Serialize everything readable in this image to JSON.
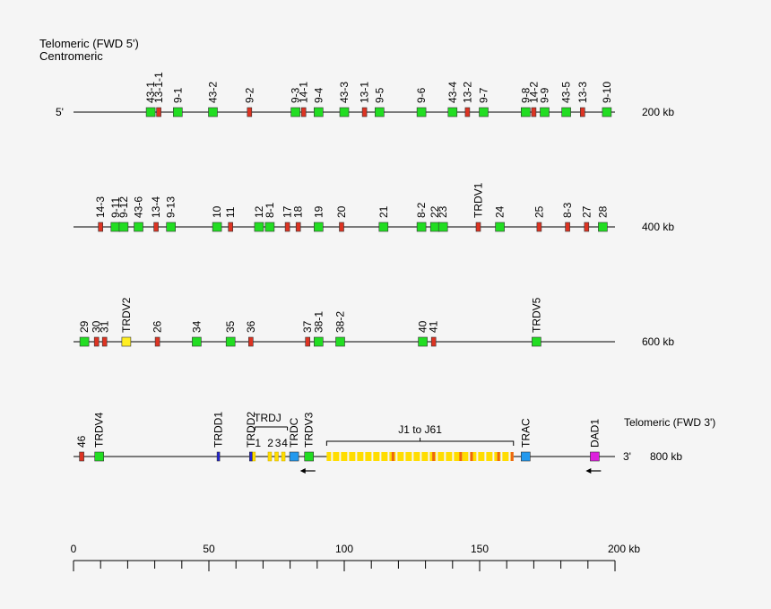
{
  "header": {
    "line1": "Telomeric (FWD 5')",
    "line2": "Centromeric"
  },
  "tracks": [
    {
      "end_label": "5'",
      "kb_label": "200 kb",
      "genes": [
        {
          "name": "43-1",
          "pos": 28.5,
          "type": "V"
        },
        {
          "name": "13-1-1",
          "pos": 31.5,
          "type": "pseudo"
        },
        {
          "name": "9-1",
          "pos": 38.5,
          "type": "V"
        },
        {
          "name": "43-2",
          "pos": 51.5,
          "type": "V"
        },
        {
          "name": "9-2",
          "pos": 65,
          "type": "pseudo"
        },
        {
          "name": "9-3",
          "pos": 82,
          "type": "V"
        },
        {
          "name": "14-1",
          "pos": 85,
          "type": "pseudo"
        },
        {
          "name": "9-4",
          "pos": 90.5,
          "type": "V"
        },
        {
          "name": "43-3",
          "pos": 100,
          "type": "V"
        },
        {
          "name": "13-1",
          "pos": 107.5,
          "type": "pseudo"
        },
        {
          "name": "9-5",
          "pos": 113,
          "type": "V"
        },
        {
          "name": "9-6",
          "pos": 128.5,
          "type": "V"
        },
        {
          "name": "43-4",
          "pos": 140,
          "type": "V"
        },
        {
          "name": "13-2",
          "pos": 145.5,
          "type": "pseudo"
        },
        {
          "name": "9-7",
          "pos": 151.5,
          "type": "V"
        },
        {
          "name": "9-8",
          "pos": 167,
          "type": "V"
        },
        {
          "name": "14-2",
          "pos": 170,
          "type": "pseudo"
        },
        {
          "name": "9-9",
          "pos": 174,
          "type": "V"
        },
        {
          "name": "43-5",
          "pos": 182,
          "type": "V"
        },
        {
          "name": "13-3",
          "pos": 188,
          "type": "pseudo"
        },
        {
          "name": "9-10",
          "pos": 197,
          "type": "V"
        }
      ]
    },
    {
      "end_label": "",
      "kb_label": "400 kb",
      "genes": [
        {
          "name": "14-3",
          "pos": 10,
          "type": "pseudo"
        },
        {
          "name": "9-11",
          "pos": 15.5,
          "type": "V"
        },
        {
          "name": "9-12",
          "pos": 18.5,
          "type": "V"
        },
        {
          "name": "43-6",
          "pos": 24,
          "type": "V"
        },
        {
          "name": "13-4",
          "pos": 30.5,
          "type": "pseudo"
        },
        {
          "name": "9-13",
          "pos": 36,
          "type": "V"
        },
        {
          "name": "10",
          "pos": 53,
          "type": "V"
        },
        {
          "name": "11",
          "pos": 58,
          "type": "pseudo"
        },
        {
          "name": "12",
          "pos": 68.5,
          "type": "V"
        },
        {
          "name": "8-1",
          "pos": 72.5,
          "type": "V"
        },
        {
          "name": "17",
          "pos": 79,
          "type": "pseudo"
        },
        {
          "name": "18",
          "pos": 83,
          "type": "pseudo"
        },
        {
          "name": "19",
          "pos": 90.5,
          "type": "V"
        },
        {
          "name": "20",
          "pos": 99,
          "type": "pseudo"
        },
        {
          "name": "21",
          "pos": 114.5,
          "type": "V"
        },
        {
          "name": "8-2",
          "pos": 128.5,
          "type": "V"
        },
        {
          "name": "22",
          "pos": 133.5,
          "type": "V"
        },
        {
          "name": "23",
          "pos": 136.5,
          "type": "V"
        },
        {
          "name": "TRDV1",
          "pos": 149.5,
          "type": "pseudo"
        },
        {
          "name": "24",
          "pos": 157.5,
          "type": "V"
        },
        {
          "name": "25",
          "pos": 172,
          "type": "pseudo"
        },
        {
          "name": "8-3",
          "pos": 182.5,
          "type": "pseudo"
        },
        {
          "name": "27",
          "pos": 189.5,
          "type": "pseudo"
        },
        {
          "name": "28",
          "pos": 195.5,
          "type": "V"
        }
      ]
    },
    {
      "end_label": "",
      "kb_label": "600 kb",
      "genes": [
        {
          "name": "29",
          "pos": 4,
          "type": "V"
        },
        {
          "name": "30",
          "pos": 8.5,
          "type": "pseudo"
        },
        {
          "name": "31",
          "pos": 11.5,
          "type": "pseudo"
        },
        {
          "name": "TRDV2",
          "pos": 19.5,
          "type": "TRD"
        },
        {
          "name": "26",
          "pos": 31,
          "type": "pseudo"
        },
        {
          "name": "34",
          "pos": 45.5,
          "type": "V"
        },
        {
          "name": "35",
          "pos": 58,
          "type": "V"
        },
        {
          "name": "36",
          "pos": 65.5,
          "type": "pseudo"
        },
        {
          "name": "37",
          "pos": 86.5,
          "type": "pseudo"
        },
        {
          "name": "38-1",
          "pos": 90.5,
          "type": "V"
        },
        {
          "name": "38-2",
          "pos": 98.5,
          "type": "V"
        },
        {
          "name": "40",
          "pos": 129,
          "type": "V"
        },
        {
          "name": "41",
          "pos": 133,
          "type": "pseudo"
        },
        {
          "name": "TRDV5",
          "pos": 171,
          "type": "V"
        }
      ]
    },
    {
      "end_label": "3'",
      "kb_label": "800 kb",
      "right_label": "Telomeric (FWD 3')",
      "genes": [
        {
          "name": "46",
          "pos": 3,
          "type": "pseudo"
        },
        {
          "name": "TRDV4",
          "pos": 9.5,
          "type": "V"
        },
        {
          "name": "TRDD1",
          "pos": 53.5,
          "type": "D"
        },
        {
          "name": "TRDD2",
          "pos": 65.5,
          "type": "D"
        },
        {
          "name": "TRDC",
          "pos": 81.5,
          "type": "C"
        },
        {
          "name": "TRDV3",
          "pos": 87,
          "type": "V"
        },
        {
          "name": "TRAC",
          "pos": 167,
          "type": "C"
        },
        {
          "name": "DAD1",
          "pos": 192.5,
          "type": "other"
        }
      ],
      "trdj": {
        "label": "TRDJ",
        "numbers": [
          "1",
          "2",
          "3",
          "4"
        ],
        "positions": [
          66.5,
          72.5,
          75,
          77.5
        ]
      },
      "trac_j": {
        "label": "J1 to J61",
        "start": 93.5,
        "end": 162.5
      },
      "arrows": [
        {
          "at": 87,
          "dir": "left"
        },
        {
          "at": 192.5,
          "dir": "left"
        }
      ]
    }
  ],
  "scale": {
    "ticks": [
      "0",
      "50",
      "100",
      "150",
      "200 kb"
    ],
    "tick_values": [
      0,
      50,
      100,
      150,
      200
    ],
    "max": 200
  },
  "colors": {
    "V": "#22dd22",
    "pseudo": "#dd3322",
    "TRD": "#ffee22",
    "D": "#2222dd",
    "C": "#2299ee",
    "other": "#dd22dd",
    "J": "#ffdd00"
  }
}
